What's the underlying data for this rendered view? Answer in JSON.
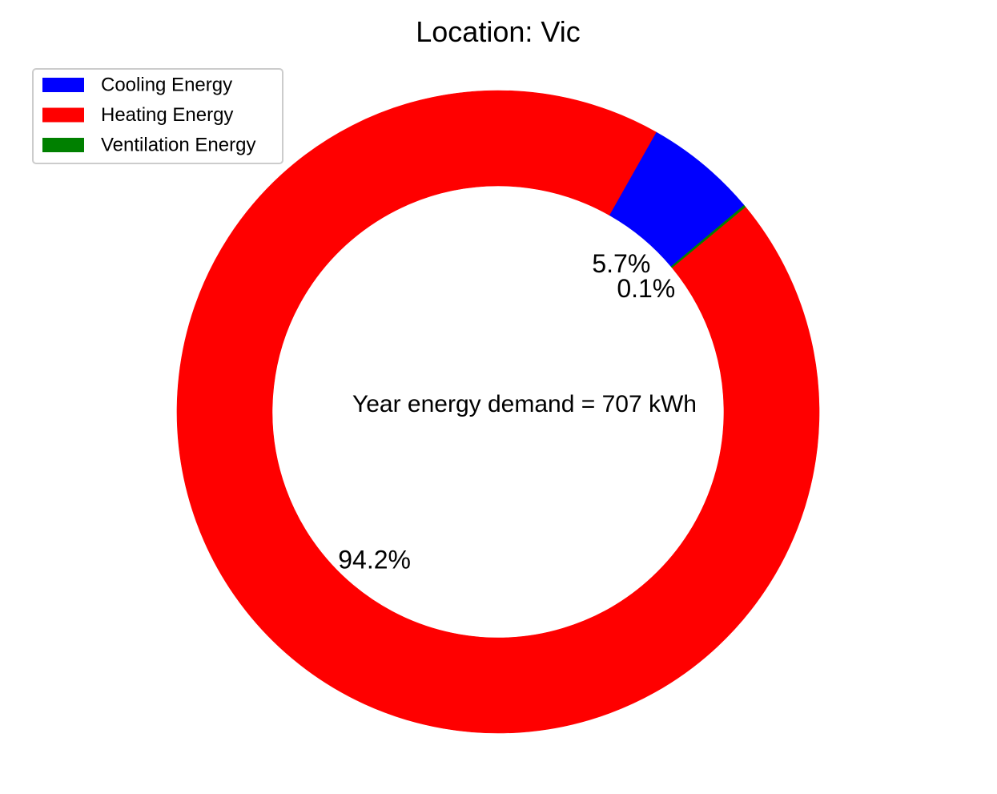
{
  "chart_data": {
    "type": "pie",
    "variant": "donut",
    "title": "Location: Vic",
    "center_text": "Year energy demand = 707 kWh",
    "categories": [
      "Cooling Energy",
      "Heating Energy",
      "Ventilation Energy"
    ],
    "values": [
      5.7,
      94.2,
      0.1
    ],
    "value_labels": [
      "5.7%",
      "94.2%",
      "0.1%"
    ],
    "colors": [
      "#0000ff",
      "#ff0000",
      "#008000"
    ],
    "legend": {
      "position": "top-left",
      "entries": [
        "Cooling Energy",
        "Heating Energy",
        "Ventilation Energy"
      ]
    }
  }
}
